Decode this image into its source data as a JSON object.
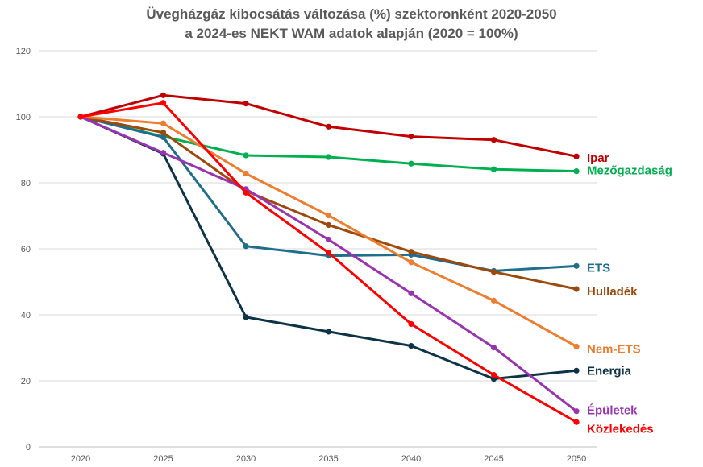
{
  "chart_data": {
    "type": "line",
    "title_line1": "Üvegházgáz kibocsátás változása (%) szektoronként 2020-2050",
    "title_line2": "a 2024-es NEKT WAM adatok alapján (2020 = 100%)",
    "xlabel": "",
    "ylabel": "",
    "categories": [
      "2020",
      "2025",
      "2030",
      "2035",
      "2040",
      "2045",
      "2050"
    ],
    "ylim": [
      0,
      120
    ],
    "yticks": [
      0,
      20,
      40,
      60,
      80,
      100,
      120
    ],
    "grid": true,
    "legend": "inline labels at line ends (right)",
    "series": [
      {
        "name": "Ipar",
        "color": "#C00000",
        "values": [
          100,
          106.5,
          104,
          97,
          94,
          93,
          88
        ]
      },
      {
        "name": "Mezőgazdaság",
        "color": "#00B050",
        "values": [
          100,
          94,
          88.3,
          87.8,
          85.8,
          84.1,
          83.5
        ]
      },
      {
        "name": "ETS",
        "color": "#1F6E8C",
        "values": [
          100,
          93.8,
          60.8,
          57.9,
          58.2,
          53.3,
          54.8
        ]
      },
      {
        "name": "Hulladék",
        "color": "#9C4A0C",
        "values": [
          100,
          95.2,
          77.5,
          67.2,
          59.1,
          53,
          47.8
        ]
      },
      {
        "name": "Nem-ETS",
        "color": "#ED7D31",
        "values": [
          100,
          98,
          82.8,
          70.1,
          55.9,
          44.3,
          30.4
        ]
      },
      {
        "name": "Energia",
        "color": "#0D3347",
        "values": [
          100,
          88.8,
          39.3,
          34.9,
          30.6,
          20.6,
          23.1
        ]
      },
      {
        "name": "Épületek",
        "color": "#9933B0",
        "values": [
          100,
          89.1,
          78.1,
          62.8,
          46.5,
          30.1,
          10.8
        ]
      },
      {
        "name": "Közlekedés",
        "color": "#FF0000",
        "values": [
          100,
          104.2,
          77,
          58.8,
          37.2,
          21.8,
          7.5
        ]
      }
    ]
  }
}
